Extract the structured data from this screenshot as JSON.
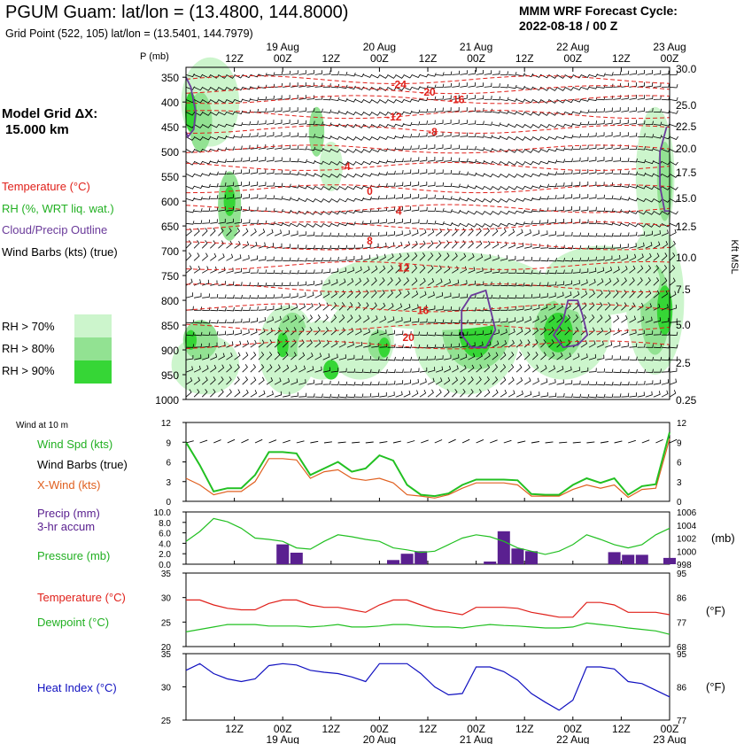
{
  "header": {
    "title": "PGUM Guam:  lat/lon = (13.4800, 144.8000)",
    "grid_point": "Grid Point (522, 105) lat/lon = (13.5401, 144.7979)",
    "cycle_label": "MMM WRF Forecast Cycle:",
    "cycle_value": "2022-08-18 / 00  Z",
    "model_grid_label": "Model Grid ΔX:",
    "model_grid_value": "15.000 km"
  },
  "legend": {
    "temperature": "Temperature (°C)",
    "rh": "RH (%, WRT liq. wat.)",
    "cloud": "Cloud/Precip Outline",
    "wind_barbs": "Wind Barbs (kts) (true)",
    "rh70": "RH > 70%",
    "rh80": "RH > 80%",
    "rh90": "RH > 90%"
  },
  "colors": {
    "rh70": "#ccf5cc",
    "rh80": "#92e292",
    "rh90": "#36d636",
    "temperature": "#e0201a",
    "cloud": "#6a3a9a",
    "wind_speed": "#22c022",
    "x_wind": "#e06020",
    "precip": "#5a2090",
    "pressure": "#22c022",
    "dewpoint": "#22c022",
    "heat_index": "#1010c0"
  },
  "chart_data": [
    {
      "type": "heatmap",
      "panel": "cross-section",
      "p_axis_label": "P (mb)",
      "kft_axis_label": "Kft MSL",
      "p_ticks": [
        "350",
        "400",
        "450",
        "500",
        "550",
        "600",
        "650",
        "700",
        "750",
        "800",
        "850",
        "900",
        "950",
        "1000"
      ],
      "kft_ticks": [
        "30.0",
        "25.0",
        "22.5",
        "20.0",
        "17.5",
        "15.0",
        "12.5",
        "10.0",
        "7.5",
        "5.0",
        "2.5",
        "0.25"
      ],
      "time_ticks": [
        "12Z",
        "00Z",
        "12Z",
        "00Z",
        "12Z",
        "00Z",
        "12Z",
        "00Z",
        "12Z",
        "00Z"
      ],
      "date_ticks": [
        "19 Aug",
        "20 Aug",
        "21 Aug",
        "22 Aug",
        "23 Aug"
      ],
      "isotherm_labels": [
        {
          "value": "-24",
          "t": 2.2,
          "p": 365
        },
        {
          "value": "-20",
          "t": 2.5,
          "p": 380
        },
        {
          "value": "-16",
          "t": 2.8,
          "p": 395
        },
        {
          "value": "-12",
          "t": 2.15,
          "p": 430
        },
        {
          "value": "-8",
          "t": 2.55,
          "p": 460
        },
        {
          "value": "-4",
          "t": 1.65,
          "p": 530
        },
        {
          "value": "0",
          "t": 1.9,
          "p": 580
        },
        {
          "value": "4",
          "t": 2.2,
          "p": 620
        },
        {
          "value": "8",
          "t": 1.9,
          "p": 680
        },
        {
          "value": "12",
          "t": 2.25,
          "p": 735
        },
        {
          "value": "16",
          "t": 2.45,
          "p": 820
        },
        {
          "value": "20",
          "t": 2.3,
          "p": 875
        }
      ],
      "extra_label": {
        "value": "9",
        "t": 2.85,
        "p": 870
      }
    },
    {
      "type": "line",
      "panel": "wind",
      "title": "Wind at 10 m",
      "ylim": [
        0,
        12
      ],
      "y_ticks": [
        "0",
        "3",
        "6",
        "9",
        "12"
      ],
      "series": [
        {
          "name": "Wind Spd (kts)",
          "values": [
            9,
            5.5,
            1.5,
            2,
            2,
            4,
            7.5,
            7.5,
            7.3,
            4,
            5,
            6,
            4.5,
            5,
            7,
            6.2,
            2.5,
            1,
            0.8,
            1.2,
            2.5,
            3.3,
            3.3,
            3.3,
            3.2,
            1.1,
            1,
            1,
            2.5,
            3.5,
            2.8,
            3.5,
            1,
            2.3,
            2.6,
            10.5
          ]
        },
        {
          "name": "X-Wind (kts)",
          "values": [
            3.5,
            2.5,
            1,
            1.5,
            1.5,
            3,
            6.5,
            6.5,
            6.3,
            3.5,
            4.5,
            4.8,
            3.5,
            3.2,
            3.5,
            2.8,
            1,
            0.8,
            0.5,
            1,
            2,
            2.8,
            2.8,
            2.8,
            2.5,
            0.8,
            0.8,
            0.8,
            1.8,
            2.5,
            2,
            2.5,
            0.6,
            1.8,
            2,
            9.5
          ]
        }
      ],
      "barb_label": "Wind Barbs (true)"
    },
    {
      "type": "bar",
      "panel": "precip",
      "precip_label": "Precip (mm)",
      "precip_sublabel": "3-hr accum",
      "pressure_label": "Pressure (mb)",
      "ylim": [
        0,
        10
      ],
      "y_ticks": [
        "0.0",
        "2.0",
        "4.0",
        "6.0",
        "8.0",
        "10.0"
      ],
      "pressure_ylim": [
        998,
        1006
      ],
      "pressure_ticks": [
        "998",
        "1000",
        "1002",
        "1004",
        "1006"
      ],
      "pressure_unit": "(mb)",
      "values": [
        0,
        0,
        0,
        0,
        0,
        0,
        0,
        3.8,
        2.2,
        0,
        0,
        0,
        0,
        0,
        0,
        0.8,
        2,
        2.5,
        0,
        0,
        0,
        0,
        0.5,
        6.3,
        3,
        2.5,
        0,
        0,
        0,
        0,
        0,
        2.3,
        1.8,
        1.8,
        0,
        1.2
      ],
      "pressure": [
        1001.5,
        1003,
        1005,
        1004.5,
        1003.5,
        1002,
        1001.8,
        1001.5,
        1000.5,
        1000.3,
        1001.5,
        1002.5,
        1002.2,
        1001.8,
        1001.5,
        1000.5,
        1000.2,
        999.8,
        1000,
        1001,
        1002,
        1002.5,
        1002.2,
        1001.5,
        1000.5,
        1000,
        999.5,
        1000,
        1001,
        1002.5,
        1001.8,
        1001,
        1000.5,
        1001,
        1002.5,
        1003.5
      ]
    },
    {
      "type": "line",
      "panel": "temperature",
      "temp_label": "Temperature (°C)",
      "dewpoint_label": "Dewpoint (°C)",
      "ylim": [
        20,
        35
      ],
      "y_ticks": [
        "20",
        "25",
        "30",
        "35"
      ],
      "f_ticks": [
        "68",
        "77",
        "86",
        "95"
      ],
      "f_unit": "(°F)",
      "series": [
        {
          "name": "Temperature (°C)",
          "values": [
            29.5,
            29.5,
            28.5,
            27.8,
            27.5,
            27.5,
            28.8,
            29.5,
            29.5,
            28.5,
            28,
            28,
            27.5,
            27,
            28.5,
            29.5,
            29.5,
            28.5,
            27.5,
            27,
            26.5,
            28,
            28,
            28,
            27.8,
            27,
            26.5,
            26,
            26,
            29,
            29,
            28.5,
            27,
            27,
            27,
            26.5
          ]
        },
        {
          "name": "Dewpoint (°C)",
          "values": [
            23,
            23.5,
            24,
            24.5,
            24.5,
            24.5,
            24.2,
            24.2,
            24.2,
            24,
            24.2,
            24.5,
            24,
            24,
            24.2,
            24.5,
            24.5,
            24.2,
            24,
            24,
            23.8,
            24.2,
            24.5,
            24.3,
            24.2,
            24,
            23.8,
            23.8,
            24,
            24.8,
            24.5,
            24.2,
            23.8,
            23.5,
            23.2,
            22.5
          ]
        }
      ]
    },
    {
      "type": "line",
      "panel": "heat-index",
      "label": "Heat Index (°C)",
      "ylim": [
        25,
        35
      ],
      "y_ticks": [
        "25",
        "30",
        "35"
      ],
      "f_ticks": [
        "77",
        "86",
        "95"
      ],
      "f_unit": "(°F)",
      "series": [
        {
          "name": "Heat Index (°C)",
          "values": [
            32.5,
            33.5,
            32,
            31.2,
            30.8,
            31.2,
            33.2,
            33.5,
            33.3,
            32.5,
            32.2,
            32,
            31.5,
            30.8,
            33.5,
            33.5,
            33.5,
            32,
            30,
            28.8,
            29,
            33,
            33,
            32.3,
            31,
            29,
            27.7,
            26.5,
            28,
            33,
            33,
            32.7,
            30.8,
            30.5,
            29.5,
            28.5
          ]
        }
      ],
      "time_ticks": [
        "12Z",
        "00Z",
        "12Z",
        "00Z",
        "12Z",
        "00Z",
        "12Z",
        "00Z",
        "12Z",
        "00Z"
      ],
      "date_ticks": [
        "19 Aug",
        "20 Aug",
        "21 Aug",
        "22 Aug",
        "23 Aug"
      ]
    }
  ]
}
